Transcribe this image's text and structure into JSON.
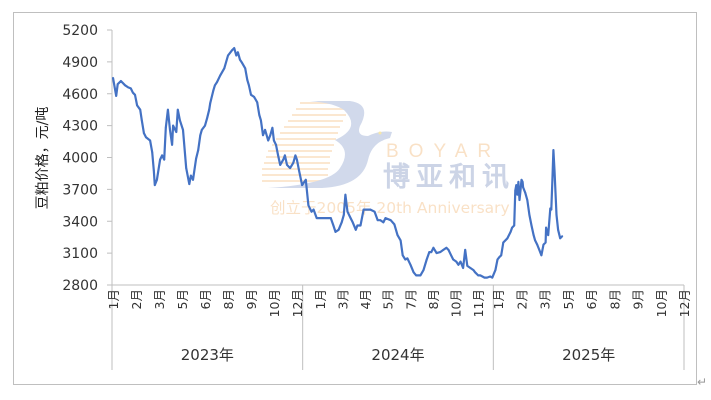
{
  "chart_data": {
    "type": "line",
    "title": "",
    "xlabel": "",
    "ylabel": "豆粕价格，元/吨",
    "ylim": [
      2800,
      5200
    ],
    "yticks": [
      "2800",
      "3100",
      "3400",
      "3700",
      "4000",
      "4300",
      "4600",
      "4900",
      "5200"
    ],
    "grid": false,
    "legend": "none",
    "line_color": "#4472C4",
    "years": [
      {
        "label": "2023年",
        "months": [
          "1月",
          "2月",
          "3月",
          "5月",
          "6月",
          "8月",
          "9月",
          "10月",
          "12月"
        ]
      },
      {
        "label": "2024年",
        "months": [
          "1月",
          "3月",
          "4月",
          "5月",
          "7月",
          "8月",
          "10月",
          "11月"
        ]
      },
      {
        "label": "2025年",
        "months": [
          "1月",
          "2月",
          "3月",
          "5月",
          "6月",
          "8月",
          "9月",
          "10月",
          "12月"
        ]
      }
    ],
    "series": [
      {
        "points": [
          [
            "2023-01-03",
            4750
          ],
          [
            "2023-01-09",
            4580
          ],
          [
            "2023-01-12",
            4690
          ],
          [
            "2023-01-18",
            4720
          ],
          [
            "2023-01-26",
            4680
          ],
          [
            "2023-02-01",
            4660
          ],
          [
            "2023-02-06",
            4650
          ],
          [
            "2023-02-10",
            4610
          ],
          [
            "2023-02-14",
            4590
          ],
          [
            "2023-02-18",
            4490
          ],
          [
            "2023-02-24",
            4450
          ],
          [
            "2023-02-27",
            4350
          ],
          [
            "2023-03-03",
            4230
          ],
          [
            "2023-03-07",
            4190
          ],
          [
            "2023-03-15",
            4160
          ],
          [
            "2023-03-19",
            4050
          ],
          [
            "2023-03-22",
            3880
          ],
          [
            "2023-03-24",
            3740
          ],
          [
            "2023-03-28",
            3790
          ],
          [
            "2023-04-03",
            3980
          ],
          [
            "2023-04-07",
            4020
          ],
          [
            "2023-04-11",
            3980
          ],
          [
            "2023-04-14",
            4280
          ],
          [
            "2023-04-18",
            4450
          ],
          [
            "2023-04-22",
            4260
          ],
          [
            "2023-04-26",
            4120
          ],
          [
            "2023-04-28",
            4300
          ],
          [
            "2023-05-04",
            4240
          ],
          [
            "2023-05-07",
            4450
          ],
          [
            "2023-05-11",
            4350
          ],
          [
            "2023-05-17",
            4260
          ],
          [
            "2023-05-23",
            3900
          ],
          [
            "2023-05-29",
            3750
          ],
          [
            "2023-06-01",
            3830
          ],
          [
            "2023-06-05",
            3790
          ],
          [
            "2023-06-11",
            3990
          ],
          [
            "2023-06-15",
            4070
          ],
          [
            "2023-06-19",
            4210
          ],
          [
            "2023-06-22",
            4260
          ],
          [
            "2023-06-28",
            4300
          ],
          [
            "2023-07-02",
            4370
          ],
          [
            "2023-07-06",
            4450
          ],
          [
            "2023-07-08",
            4510
          ],
          [
            "2023-07-14",
            4630
          ],
          [
            "2023-07-17",
            4680
          ],
          [
            "2023-07-21",
            4710
          ],
          [
            "2023-07-27",
            4770
          ],
          [
            "2023-08-04",
            4840
          ],
          [
            "2023-08-11",
            4960
          ],
          [
            "2023-08-19",
            5010
          ],
          [
            "2023-08-23",
            5030
          ],
          [
            "2023-08-27",
            4960
          ],
          [
            "2023-08-30",
            4990
          ],
          [
            "2023-09-03",
            4920
          ],
          [
            "2023-09-07",
            4890
          ],
          [
            "2023-09-13",
            4840
          ],
          [
            "2023-09-17",
            4730
          ],
          [
            "2023-09-20",
            4680
          ],
          [
            "2023-09-24",
            4590
          ],
          [
            "2023-09-30",
            4570
          ],
          [
            "2023-10-06",
            4520
          ],
          [
            "2023-10-10",
            4400
          ],
          [
            "2023-10-13",
            4350
          ],
          [
            "2023-10-17",
            4210
          ],
          [
            "2023-10-21",
            4260
          ],
          [
            "2023-10-27",
            4160
          ],
          [
            "2023-10-31",
            4210
          ],
          [
            "2023-11-04",
            4280
          ],
          [
            "2023-11-07",
            4160
          ],
          [
            "2023-11-11",
            4120
          ],
          [
            "2023-11-15",
            4020
          ],
          [
            "2023-11-19",
            3930
          ],
          [
            "2023-11-25",
            3980
          ],
          [
            "2023-11-28",
            4020
          ],
          [
            "2023-12-02",
            3930
          ],
          [
            "2023-12-08",
            3900
          ],
          [
            "2023-12-14",
            3950
          ],
          [
            "2023-12-18",
            4020
          ],
          [
            "2023-12-21",
            3980
          ],
          [
            "2023-12-25",
            3880
          ],
          [
            "2023-12-31",
            3740
          ],
          [
            "2024-01-07",
            3790
          ],
          [
            "2024-01-12",
            3550
          ],
          [
            "2024-01-18",
            3490
          ],
          [
            "2024-01-22",
            3510
          ],
          [
            "2024-01-28",
            3430
          ],
          [
            "2024-02-04",
            3430
          ],
          [
            "2024-02-18",
            3430
          ],
          [
            "2024-02-24",
            3430
          ],
          [
            "2024-02-29",
            3360
          ],
          [
            "2024-03-04",
            3300
          ],
          [
            "2024-03-10",
            3320
          ],
          [
            "2024-03-16",
            3390
          ],
          [
            "2024-03-20",
            3460
          ],
          [
            "2024-03-23",
            3650
          ],
          [
            "2024-03-27",
            3490
          ],
          [
            "2024-04-02",
            3430
          ],
          [
            "2024-04-06",
            3390
          ],
          [
            "2024-04-12",
            3320
          ],
          [
            "2024-04-15",
            3360
          ],
          [
            "2024-04-21",
            3360
          ],
          [
            "2024-04-27",
            3510
          ],
          [
            "2024-05-03",
            3510
          ],
          [
            "2024-05-10",
            3510
          ],
          [
            "2024-05-18",
            3490
          ],
          [
            "2024-05-24",
            3410
          ],
          [
            "2024-05-29",
            3410
          ],
          [
            "2024-06-04",
            3390
          ],
          [
            "2024-06-08",
            3430
          ],
          [
            "2024-06-18",
            3410
          ],
          [
            "2024-06-25",
            3370
          ],
          [
            "2024-07-01",
            3270
          ],
          [
            "2024-07-07",
            3220
          ],
          [
            "2024-07-11",
            3080
          ],
          [
            "2024-07-16",
            3040
          ],
          [
            "2024-07-20",
            3050
          ],
          [
            "2024-07-26",
            2990
          ],
          [
            "2024-08-01",
            2920
          ],
          [
            "2024-08-06",
            2890
          ],
          [
            "2024-08-14",
            2890
          ],
          [
            "2024-08-20",
            2940
          ],
          [
            "2024-08-26",
            3040
          ],
          [
            "2024-08-31",
            3110
          ],
          [
            "2024-09-04",
            3110
          ],
          [
            "2024-09-08",
            3150
          ],
          [
            "2024-09-14",
            3100
          ],
          [
            "2024-09-21",
            3110
          ],
          [
            "2024-09-27",
            3130
          ],
          [
            "2024-10-03",
            3150
          ],
          [
            "2024-10-07",
            3130
          ],
          [
            "2024-10-12",
            3080
          ],
          [
            "2024-10-16",
            3040
          ],
          [
            "2024-10-22",
            3020
          ],
          [
            "2024-10-26",
            2990
          ],
          [
            "2024-10-30",
            3020
          ],
          [
            "2024-11-04",
            2960
          ],
          [
            "2024-11-08",
            3130
          ],
          [
            "2024-11-12",
            2980
          ],
          [
            "2024-11-18",
            2960
          ],
          [
            "2024-11-24",
            2940
          ],
          [
            "2024-11-27",
            2920
          ],
          [
            "2024-12-03",
            2890
          ],
          [
            "2024-12-07",
            2890
          ],
          [
            "2024-12-15",
            2870
          ],
          [
            "2024-12-20",
            2870
          ],
          [
            "2024-12-26",
            2880
          ],
          [
            "2024-12-30",
            2870
          ],
          [
            "2025-01-05",
            2940
          ],
          [
            "2025-01-09",
            3040
          ],
          [
            "2025-01-12",
            3060
          ],
          [
            "2025-01-16",
            3080
          ],
          [
            "2025-01-20",
            3200
          ],
          [
            "2025-01-28",
            3240
          ],
          [
            "2025-02-03",
            3300
          ],
          [
            "2025-02-06",
            3340
          ],
          [
            "2025-02-10",
            3360
          ],
          [
            "2025-02-12",
            3690
          ],
          [
            "2025-02-14",
            3740
          ],
          [
            "2025-02-16",
            3650
          ],
          [
            "2025-02-18",
            3770
          ],
          [
            "2025-02-20",
            3600
          ],
          [
            "2025-02-22",
            3690
          ],
          [
            "2025-02-24",
            3790
          ],
          [
            "2025-02-26",
            3770
          ],
          [
            "2025-02-27",
            3720
          ],
          [
            "2025-03-03",
            3670
          ],
          [
            "2025-03-07",
            3600
          ],
          [
            "2025-03-11",
            3460
          ],
          [
            "2025-03-15",
            3360
          ],
          [
            "2025-03-19",
            3270
          ],
          [
            "2025-03-22",
            3220
          ],
          [
            "2025-03-26",
            3180
          ],
          [
            "2025-03-30",
            3130
          ],
          [
            "2025-04-03",
            3080
          ],
          [
            "2025-04-07",
            3180
          ],
          [
            "2025-04-11",
            3200
          ],
          [
            "2025-04-12",
            3340
          ],
          [
            "2025-04-14",
            3300
          ],
          [
            "2025-04-16",
            3270
          ],
          [
            "2025-04-20",
            3520
          ],
          [
            "2025-04-22",
            3510
          ],
          [
            "2025-04-24",
            3790
          ],
          [
            "2025-04-26",
            4070
          ],
          [
            "2025-04-28",
            3880
          ],
          [
            "2025-05-02",
            3460
          ],
          [
            "2025-05-05",
            3320
          ],
          [
            "2025-05-09",
            3240
          ],
          [
            "2025-05-13",
            3260
          ]
        ]
      }
    ]
  },
  "watermark": {
    "brand_en": "BOYAR",
    "brand_cn": "博亚和讯",
    "tagline": "创立于2005年 20th Anniversary"
  },
  "paragraph_mark": "↵"
}
